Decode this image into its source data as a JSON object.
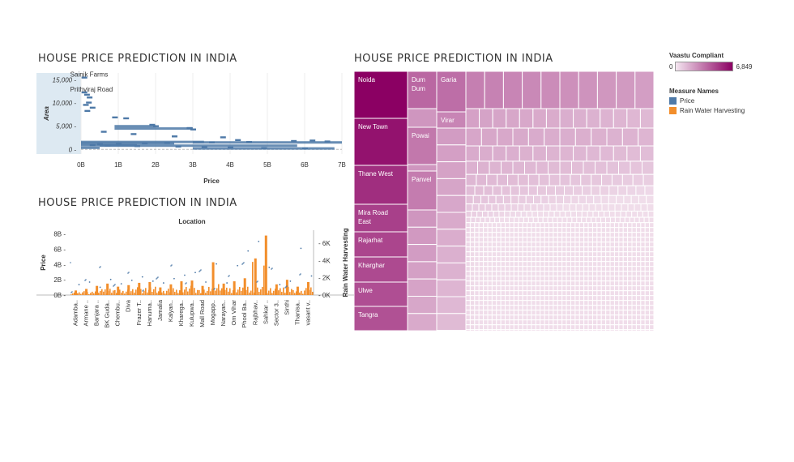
{
  "titles": {
    "scatter": "HOUSE  PRICE  PREDICTION  IN  INDIA",
    "bar": "HOUSE  PRICE  PREDICTION  IN  INDIA",
    "treemap": "HOUSE  PRICE  PREDICTION  IN  INDIA"
  },
  "legend": {
    "vaastu_title": "Vaastu Compliant",
    "vaastu_min": "0",
    "vaastu_max": "6,849",
    "measure_title": "Measure Names",
    "items": [
      {
        "label": "Price",
        "color": "#4e79a7"
      },
      {
        "label": "Rain Water Harvesting",
        "color": "#f28e2b"
      }
    ]
  },
  "chart_data": [
    {
      "type": "scatter",
      "title": "HOUSE  PRICE  PREDICTION  IN  INDIA",
      "xlabel": "Price",
      "ylabel": "Area",
      "x_ticks": [
        "0B",
        "1B",
        "2B",
        "3B",
        "4B",
        "5B",
        "6B",
        "7B"
      ],
      "y_ticks": [
        "0",
        "5,000",
        "10,000",
        "15,000"
      ],
      "xlim": [
        0,
        7000000000
      ],
      "ylim": [
        -1000,
        16500
      ],
      "annotations": [
        {
          "text": "Sainik Farms",
          "x": 80000000,
          "y": 15500
        },
        {
          "text": "Prithviraj Road",
          "x": 80000000,
          "y": 12300
        }
      ],
      "points": [
        [
          80000000,
          15500
        ],
        [
          80000000,
          12300
        ],
        [
          150000000,
          11800
        ],
        [
          220000000,
          11200
        ],
        [
          200000000,
          10100
        ],
        [
          120000000,
          9600
        ],
        [
          300000000,
          9000
        ],
        [
          160000000,
          8300
        ],
        [
          900000000,
          6900
        ],
        [
          1200000000,
          6700
        ],
        [
          1900000000,
          5300
        ],
        [
          2000000000,
          5000
        ],
        [
          2900000000,
          4600
        ],
        [
          3000000000,
          4300
        ],
        [
          600000000,
          3800
        ],
        [
          1400000000,
          3300
        ],
        [
          2500000000,
          2800
        ],
        [
          3800000000,
          2600
        ],
        [
          4200000000,
          2000
        ],
        [
          5700000000,
          1800
        ],
        [
          6200000000,
          1900
        ],
        [
          6600000000,
          1700
        ],
        [
          4500000000,
          1600
        ],
        [
          3500000000,
          1500
        ],
        [
          2300000000,
          1400
        ],
        [
          1700000000,
          1300
        ],
        [
          1000000000,
          1200
        ],
        [
          500000000,
          1100
        ],
        [
          300000000,
          900
        ],
        [
          700000000,
          800
        ],
        [
          1500000000,
          700
        ],
        [
          2600000000,
          600
        ],
        [
          3300000000,
          500
        ],
        [
          4000000000,
          400
        ],
        [
          4900000000,
          300
        ],
        [
          6000000000,
          200
        ]
      ]
    },
    {
      "type": "bar",
      "title": "HOUSE  PRICE  PREDICTION  IN  INDIA",
      "header": "Location",
      "ylabel": "Price",
      "y2label": "Rain Water Harvesting",
      "y_ticks": [
        "0B",
        "2B",
        "4B",
        "6B",
        "8B"
      ],
      "y2_ticks": [
        "0K",
        "2K",
        "4K",
        "6K"
      ],
      "ylim": [
        0,
        8500000000
      ],
      "y2lim": [
        0,
        7500
      ],
      "categories": [
        "Adamba..",
        "Armane ..",
        "Banjara ..",
        "BK Guda..",
        "Chembu..",
        "Diva",
        "Frazer T..",
        "Hanuma..",
        "Jamalia",
        "Kalyan..",
        "Kharega..",
        "Kulupwa..",
        "Mall Road",
        "Mogapp..",
        "Narayan..",
        "Om Vihar",
        "Phool Ba..",
        "Rajbhav..",
        "Sahkar ..",
        "Sector 3..",
        "Sinthi",
        "Thanisa..",
        "vasant v.."
      ],
      "series": [
        {
          "name": "Price",
          "values": [
            0.6,
            0.8,
            1.2,
            1.5,
            1.1,
            1.3,
            1.6,
            1.7,
            1.0,
            1.4,
            1.8,
            1.9,
            1.2,
            4.3,
            1.5,
            1.8,
            2.2,
            4.8,
            7.8,
            1.4,
            2.0,
            1.1,
            1.7
          ]
        },
        {
          "name": "Rain Water Harvesting",
          "values": [
            1200,
            1500,
            900,
            1800,
            1300,
            1700,
            2100,
            1600,
            1400,
            1900,
            2300,
            2600,
            1500,
            3600,
            1400,
            3400,
            5100,
            6200,
            3200,
            1200,
            1600,
            5400,
            2200
          ]
        }
      ]
    },
    {
      "type": "treemap",
      "title": "HOUSE  PRICE  PREDICTION  IN  INDIA",
      "color_measure": "Vaastu Compliant",
      "color_range": [
        0,
        6849
      ],
      "labels": [
        "Noida",
        "New Town",
        "Thane West",
        "Mira Road East",
        "Rajarhat",
        "Kharghar",
        "Ulwe",
        "Tangra",
        "Dum Dum",
        "Powai",
        "Panvel",
        "Garia",
        "Virar"
      ],
      "values": [
        6849,
        5200,
        4900,
        4300,
        4100,
        3900,
        3700,
        3600,
        3300,
        2900,
        2700,
        3100,
        2500
      ]
    }
  ]
}
